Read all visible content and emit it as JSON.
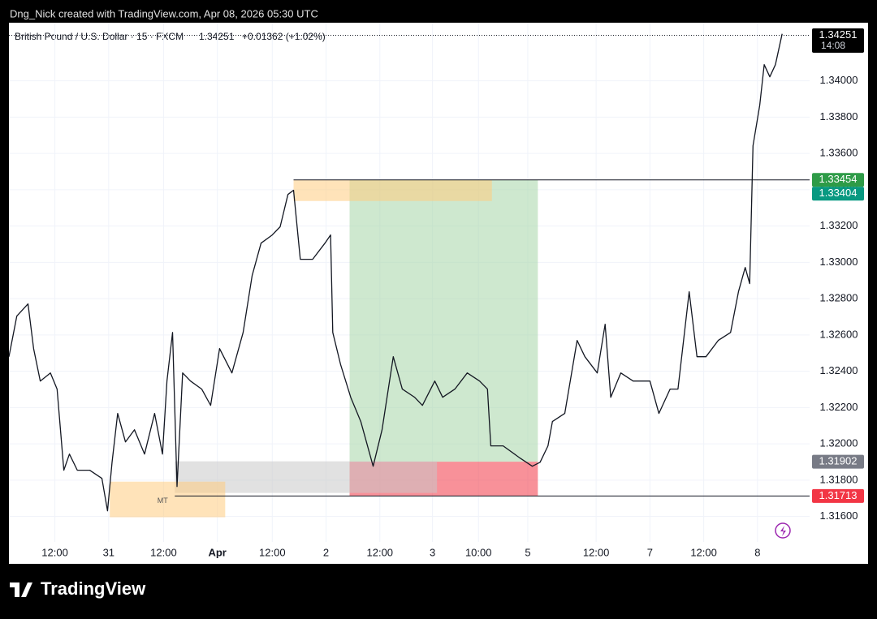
{
  "header": {
    "credit": "Dng_Nick created with TradingView.com, Apr 08, 2026 05:30 UTC"
  },
  "chart_data": {
    "type": "line",
    "symbol": "British Pound / U.S. Dollar · 15 · FXCM",
    "last_price": 1.34251,
    "change": "+0.01362 (+1.02%)",
    "countdown": "14:08",
    "color": "#131722",
    "x": [
      0,
      7,
      17,
      22,
      28,
      37,
      43,
      49,
      54,
      61,
      72,
      83,
      88,
      92,
      97,
      104,
      112,
      121,
      130,
      137,
      141,
      146,
      150,
      155,
      162,
      172,
      180,
      188,
      199,
      209,
      217,
      225,
      235,
      242,
      249,
      254,
      260,
      271,
      282,
      287,
      289,
      296,
      305,
      314,
      325,
      333,
      343,
      351,
      362,
      369,
      380,
      387,
      398,
      409,
      420,
      427,
      430,
      441,
      456,
      467,
      474,
      481,
      485,
      496,
      507,
      514,
      525,
      532,
      537,
      546,
      557,
      572,
      580,
      590,
      597,
      607,
      614,
      622,
      633,
      644,
      651,
      657,
      661,
      664,
      670,
      674,
      679,
      684,
      690
    ],
    "values": [
      1.3248,
      1.32704,
      1.32771,
      1.32525,
      1.32346,
      1.32391,
      1.32302,
      1.31855,
      1.31944,
      1.31855,
      1.31855,
      1.3181,
      1.31631,
      1.31899,
      1.32168,
      1.32011,
      1.32078,
      1.31944,
      1.32168,
      1.31944,
      1.32346,
      1.32614,
      1.31765,
      1.32391,
      1.32346,
      1.32302,
      1.32212,
      1.32525,
      1.32391,
      1.32614,
      1.32927,
      1.33106,
      1.33151,
      1.33196,
      1.33374,
      1.33397,
      1.33017,
      1.33017,
      1.33106,
      1.33151,
      1.32614,
      1.32436,
      1.32257,
      1.32123,
      1.31877,
      1.32078,
      1.3248,
      1.32302,
      1.32257,
      1.32212,
      1.32346,
      1.32257,
      1.32302,
      1.32391,
      1.32346,
      1.32302,
      1.31989,
      1.31989,
      1.31922,
      1.31877,
      1.31899,
      1.31989,
      1.32123,
      1.32168,
      1.3257,
      1.3248,
      1.32391,
      1.32659,
      1.32257,
      1.32391,
      1.32346,
      1.32346,
      1.32168,
      1.32302,
      1.32302,
      1.32838,
      1.3248,
      1.3248,
      1.3257,
      1.32614,
      1.32838,
      1.32972,
      1.32883,
      1.33642,
      1.33866,
      1.34089,
      1.34022,
      1.34089,
      1.34259
    ],
    "xlim": [
      0,
      714.5
    ],
    "ylim": [
      1.3146,
      1.3432
    ],
    "xticks": [
      {
        "value": 41,
        "label": "12:00"
      },
      {
        "value": 89,
        "label": "31"
      },
      {
        "value": 138,
        "label": "12:00"
      },
      {
        "value": 186,
        "label": "Apr"
      },
      {
        "value": 235,
        "label": "12:00"
      },
      {
        "value": 283,
        "label": "2"
      },
      {
        "value": 331,
        "label": "12:00"
      },
      {
        "value": 378,
        "label": "3"
      },
      {
        "value": 419,
        "label": "10:00"
      },
      {
        "value": 463,
        "label": "5"
      },
      {
        "value": 524,
        "label": "12:00"
      },
      {
        "value": 572,
        "label": "7"
      },
      {
        "value": 620,
        "label": "12:00"
      },
      {
        "value": 668,
        "label": "8"
      }
    ],
    "yticks": [
      {
        "value": 1.316,
        "label": "1.31600"
      },
      {
        "value": 1.318,
        "label": "1.31800"
      },
      {
        "value": 1.32,
        "label": "1.32000"
      },
      {
        "value": 1.322,
        "label": "1.32200"
      },
      {
        "value": 1.324,
        "label": "1.32400"
      },
      {
        "value": 1.326,
        "label": "1.32600"
      },
      {
        "value": 1.328,
        "label": "1.32800"
      },
      {
        "value": 1.33,
        "label": "1.33000"
      },
      {
        "value": 1.332,
        "label": "1.33200"
      },
      {
        "value": 1.334,
        "label": "1.33400"
      },
      {
        "value": 1.336,
        "label": "1.33600"
      },
      {
        "value": 1.338,
        "label": "1.33800"
      },
      {
        "value": 1.34,
        "label": "1.34000"
      }
    ],
    "grid": true,
    "zones": [
      {
        "x": [
          304,
          472
        ],
        "y": [
          1.31902,
          1.33454
        ],
        "color": "#a5d6a7"
      },
      {
        "x": [
          304,
          472
        ],
        "y": [
          1.31713,
          1.31902
        ],
        "color": "#f23645"
      },
      {
        "x": [
          148,
          382
        ],
        "y": [
          1.3173,
          1.31904
        ],
        "color": "#c8c8c8"
      },
      {
        "x": [
          254,
          431
        ],
        "y": [
          1.33338,
          1.33455
        ],
        "color": "#ffcc80"
      },
      {
        "x": [
          90,
          193
        ],
        "y": [
          1.31596,
          1.31792
        ],
        "color": "#ffcc80",
        "label": "MT"
      }
    ],
    "hlines": [
      {
        "value": 1.33454,
        "x0": 254
      },
      {
        "value": 1.31713,
        "x0": 148
      }
    ],
    "price_labels": [
      {
        "value": 1.34251,
        "color": "#000000"
      },
      {
        "value": 1.33454,
        "color": "#2e9b47"
      },
      {
        "value": 1.33404,
        "color": "#089981"
      },
      {
        "value": 1.31902,
        "color": "#787b86"
      },
      {
        "value": 1.31713,
        "color": "#f23645"
      }
    ]
  },
  "footer": {
    "brand": "TradingView"
  }
}
